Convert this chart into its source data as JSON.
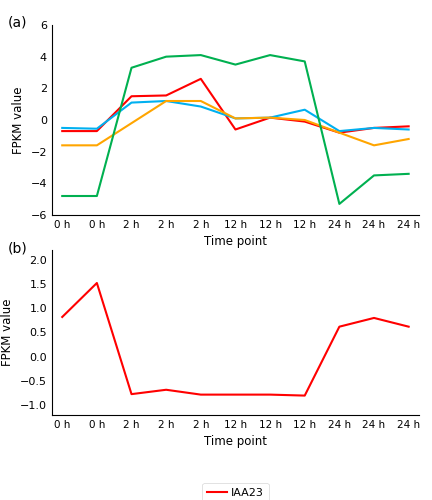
{
  "x_labels": [
    "0 h",
    "0 h",
    "2 h",
    "2 h",
    "2 h",
    "12 h",
    "12 h",
    "12 h",
    "24 h",
    "24 h",
    "24 h"
  ],
  "panel_a": {
    "IAA11": {
      "color": "#FF0000",
      "values": [
        -0.7,
        -0.7,
        1.5,
        1.55,
        2.6,
        -0.6,
        0.15,
        -0.1,
        -0.8,
        -0.5,
        -0.4
      ]
    },
    "IAA9": {
      "color": "#00B0F0",
      "values": [
        -0.5,
        -0.55,
        1.1,
        1.2,
        0.85,
        0.1,
        0.15,
        0.65,
        -0.7,
        -0.5,
        -0.6
      ]
    },
    "ARF5": {
      "color": "#FFA500",
      "values": [
        -1.6,
        -1.6,
        -0.2,
        1.2,
        1.2,
        0.1,
        0.15,
        0.0,
        -0.8,
        -1.6,
        -1.2
      ]
    },
    "GH3.8": {
      "color": "#00B050",
      "values": [
        -4.8,
        -4.8,
        3.3,
        4.0,
        4.1,
        3.5,
        4.1,
        3.7,
        -5.3,
        -3.5,
        -3.4
      ]
    }
  },
  "panel_a_ylim": [
    -6,
    6
  ],
  "panel_a_yticks": [
    -6,
    -4,
    -2,
    0,
    2,
    4,
    6
  ],
  "panel_b": {
    "IAA23": {
      "color": "#FF0000",
      "values": [
        0.82,
        1.52,
        -0.77,
        -0.68,
        -0.78,
        -0.78,
        -0.78,
        -0.8,
        0.62,
        0.8,
        0.62
      ]
    }
  },
  "panel_b_ylim": [
    -1.2,
    2.2
  ],
  "panel_b_yticks": [
    -1,
    -0.5,
    0,
    0.5,
    1,
    1.5,
    2
  ],
  "ylabel": "FPKM value",
  "xlabel": "Time point",
  "label_a": "(a)",
  "label_b": "(b)"
}
